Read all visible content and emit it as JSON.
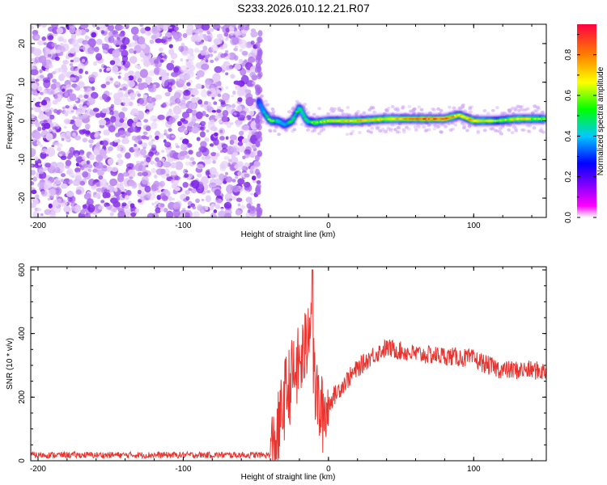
{
  "title": "S233.2026.010.12.21.R07",
  "colors": {
    "axis": "#000000",
    "snr_line": "#e8332e",
    "noise_purple": "#7a1fe6",
    "colorbar_stops": [
      "#ff00ff",
      "#0000ff",
      "#00c8ff",
      "#00ff00",
      "#ffff00",
      "#ff8000",
      "#ff0040"
    ]
  },
  "chart_data": [
    {
      "type": "heatmap",
      "name": "spectrogram",
      "xlabel": "Height of straight line (km)",
      "ylabel": "Frequency (Hz)",
      "xlim": [
        -205,
        150
      ],
      "ylim": [
        -25,
        25
      ],
      "xticks": [
        -200,
        -100,
        0,
        100
      ],
      "yticks": [
        -20,
        -10,
        0,
        10,
        20
      ],
      "grid": false,
      "noise_region": {
        "x_from": -205,
        "x_to": -48,
        "freq_range": [
          -25,
          25
        ],
        "level": "low (purple speckle)"
      },
      "signal_ridge": [
        {
          "x": -48,
          "f": 5,
          "amp": 0.35
        },
        {
          "x": -44,
          "f": 2,
          "amp": 0.45
        },
        {
          "x": -40,
          "f": 0,
          "amp": 0.6
        },
        {
          "x": -35,
          "f": 0,
          "amp": 0.5
        },
        {
          "x": -30,
          "f": -1,
          "amp": 0.45
        },
        {
          "x": -25,
          "f": 0,
          "amp": 0.5
        },
        {
          "x": -20,
          "f": 3.5,
          "amp": 0.55
        },
        {
          "x": -15,
          "f": 0,
          "amp": 0.5
        },
        {
          "x": -10,
          "f": -0.5,
          "amp": 0.6
        },
        {
          "x": 0,
          "f": 0,
          "amp": 0.65
        },
        {
          "x": 20,
          "f": 0,
          "amp": 0.75
        },
        {
          "x": 40,
          "f": 0.5,
          "amp": 0.7
        },
        {
          "x": 60,
          "f": 0.5,
          "amp": 0.85
        },
        {
          "x": 80,
          "f": 0.5,
          "amp": 0.9
        },
        {
          "x": 90,
          "f": 1.5,
          "amp": 0.7
        },
        {
          "x": 100,
          "f": 0,
          "amp": 0.8
        },
        {
          "x": 115,
          "f": 0,
          "amp": 0.6
        },
        {
          "x": 130,
          "f": 0.5,
          "amp": 0.7
        },
        {
          "x": 150,
          "f": 0.5,
          "amp": 0.6
        }
      ],
      "colorbar": {
        "label": "Normalized spectral amplitude",
        "range": [
          0,
          0.95
        ],
        "ticks": [
          "0.0",
          "0.2",
          "0.4",
          "0.6",
          "0.8"
        ]
      }
    },
    {
      "type": "line",
      "name": "snr",
      "xlabel": "Height of straight line (km)",
      "ylabel": "SNR (10 * v/v)",
      "xlim": [
        -205,
        150
      ],
      "ylim": [
        0,
        610
      ],
      "xticks": [
        -200,
        -100,
        0,
        100
      ],
      "yticks": [
        0,
        200,
        400,
        600
      ],
      "grid": false,
      "series": [
        {
          "name": "SNR",
          "x": [
            -205,
            -150,
            -100,
            -60,
            -40,
            -35,
            -30,
            -25,
            -20,
            -15,
            -12,
            -10,
            -5,
            0,
            10,
            20,
            30,
            40,
            60,
            80,
            100,
            110,
            120,
            130,
            140,
            150
          ],
          "values": [
            18,
            18,
            18,
            18,
            18,
            80,
            200,
            260,
            300,
            360,
            520,
            250,
            140,
            180,
            240,
            290,
            330,
            355,
            335,
            330,
            320,
            300,
            285,
            285,
            285,
            280
          ]
        }
      ],
      "peak": {
        "x": -11,
        "value": 600
      }
    }
  ]
}
